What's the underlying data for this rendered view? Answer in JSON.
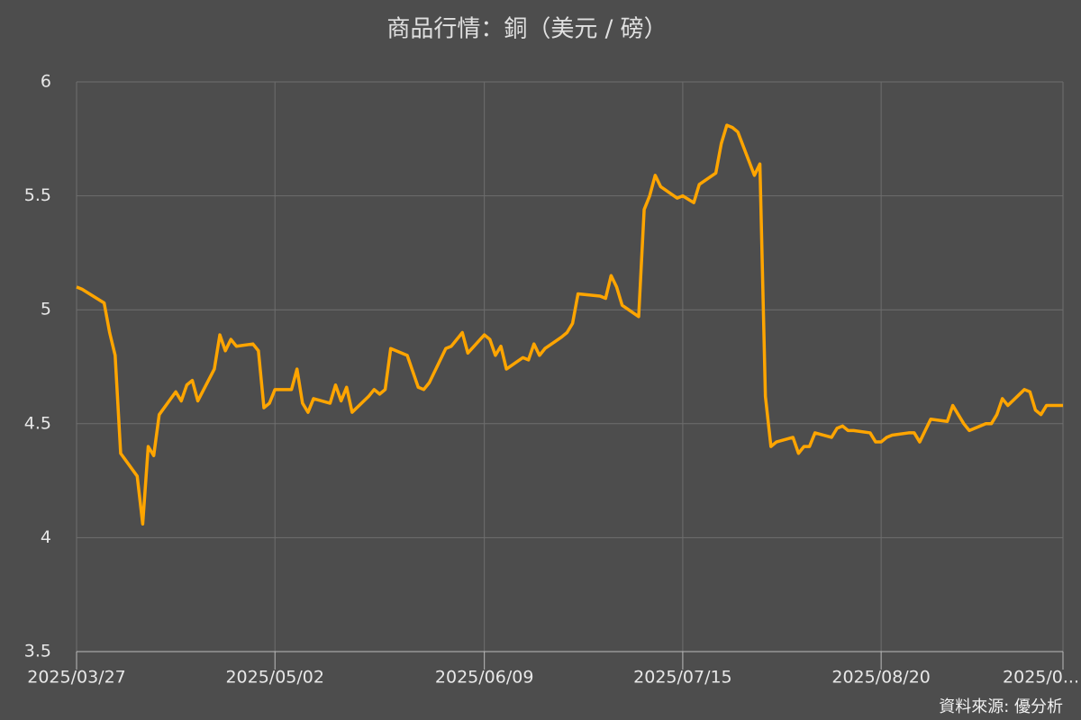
{
  "chart_data": {
    "type": "line",
    "title": "商品行情：銅（美元 / 磅）",
    "source": "資料來源: 優分析",
    "grid": true,
    "xlim": [
      "2025-03-27",
      "2025-09-22"
    ],
    "ylim": [
      3.5,
      6
    ],
    "yticks": [
      3.5,
      4,
      4.5,
      5,
      5.5,
      6
    ],
    "xticks": [
      {
        "value": "2025-03-27",
        "label": "2025/03/27"
      },
      {
        "value": "2025-05-02",
        "label": "2025/05/02"
      },
      {
        "value": "2025-06-09",
        "label": "2025/06/09"
      },
      {
        "value": "2025-07-15",
        "label": "2025/07/15"
      },
      {
        "value": "2025-08-20",
        "label": "2025/08/20"
      },
      {
        "value": "2025-09-22",
        "label": "2025/0..."
      }
    ],
    "x": [
      "2025-03-27",
      "2025-03-28",
      "2025-04-01",
      "2025-04-02",
      "2025-04-03",
      "2025-04-04",
      "2025-04-07",
      "2025-04-08",
      "2025-04-09",
      "2025-04-10",
      "2025-04-11",
      "2025-04-14",
      "2025-04-15",
      "2025-04-16",
      "2025-04-17",
      "2025-04-18",
      "2025-04-21",
      "2025-04-22",
      "2025-04-23",
      "2025-04-24",
      "2025-04-25",
      "2025-04-28",
      "2025-04-29",
      "2025-04-30",
      "2025-05-01",
      "2025-05-02",
      "2025-05-05",
      "2025-05-06",
      "2025-05-07",
      "2025-05-08",
      "2025-05-09",
      "2025-05-12",
      "2025-05-13",
      "2025-05-14",
      "2025-05-15",
      "2025-05-16",
      "2025-05-19",
      "2025-05-20",
      "2025-05-21",
      "2025-05-22",
      "2025-05-23",
      "2025-05-26",
      "2025-05-27",
      "2025-05-28",
      "2025-05-29",
      "2025-05-30",
      "2025-06-02",
      "2025-06-03",
      "2025-06-04",
      "2025-06-05",
      "2025-06-06",
      "2025-06-09",
      "2025-06-10",
      "2025-06-11",
      "2025-06-12",
      "2025-06-13",
      "2025-06-16",
      "2025-06-17",
      "2025-06-18",
      "2025-06-19",
      "2025-06-20",
      "2025-06-23",
      "2025-06-24",
      "2025-06-25",
      "2025-06-26",
      "2025-06-30",
      "2025-07-01",
      "2025-07-02",
      "2025-07-03",
      "2025-07-04",
      "2025-07-07",
      "2025-07-08",
      "2025-07-09",
      "2025-07-10",
      "2025-07-11",
      "2025-07-14",
      "2025-07-15",
      "2025-07-17",
      "2025-07-18",
      "2025-07-21",
      "2025-07-22",
      "2025-07-23",
      "2025-07-24",
      "2025-07-25",
      "2025-07-28",
      "2025-07-29",
      "2025-07-30",
      "2025-07-31",
      "2025-08-01",
      "2025-08-04",
      "2025-08-05",
      "2025-08-06",
      "2025-08-07",
      "2025-08-08",
      "2025-08-11",
      "2025-08-12",
      "2025-08-13",
      "2025-08-14",
      "2025-08-15",
      "2025-08-18",
      "2025-08-19",
      "2025-08-20",
      "2025-08-21",
      "2025-08-22",
      "2025-08-25",
      "2025-08-26",
      "2025-08-27",
      "2025-08-28",
      "2025-08-29",
      "2025-09-01",
      "2025-09-02",
      "2025-09-03",
      "2025-09-04",
      "2025-09-05",
      "2025-09-08",
      "2025-09-09",
      "2025-09-10",
      "2025-09-11",
      "2025-09-12",
      "2025-09-15",
      "2025-09-16",
      "2025-09-17",
      "2025-09-18",
      "2025-09-19",
      "2025-09-22"
    ],
    "series": [
      {
        "color": "#ffa500",
        "values": [
          5.1,
          5.09,
          5.03,
          4.9,
          4.8,
          4.37,
          4.27,
          4.06,
          4.4,
          4.36,
          4.54,
          4.64,
          4.6,
          4.67,
          4.69,
          4.6,
          4.74,
          4.89,
          4.82,
          4.87,
          4.84,
          4.85,
          4.82,
          4.57,
          4.59,
          4.65,
          4.65,
          4.74,
          4.59,
          4.55,
          4.61,
          4.59,
          4.67,
          4.6,
          4.66,
          4.55,
          4.62,
          4.65,
          4.63,
          4.65,
          4.83,
          4.8,
          4.73,
          4.66,
          4.65,
          4.68,
          4.83,
          4.84,
          4.87,
          4.9,
          4.81,
          4.89,
          4.87,
          4.8,
          4.84,
          4.74,
          4.79,
          4.78,
          4.85,
          4.8,
          4.83,
          4.88,
          4.9,
          4.94,
          5.07,
          5.06,
          5.05,
          5.15,
          5.1,
          5.02,
          4.97,
          5.44,
          5.5,
          5.59,
          5.54,
          5.49,
          5.5,
          5.47,
          5.55,
          5.6,
          5.73,
          5.81,
          5.8,
          5.78,
          5.59,
          5.64,
          4.62,
          4.4,
          4.42,
          4.44,
          4.37,
          4.4,
          4.4,
          4.46,
          4.44,
          4.48,
          4.49,
          4.47,
          4.47,
          4.46,
          4.42,
          4.42,
          4.44,
          4.45,
          4.46,
          4.46,
          4.42,
          4.47,
          4.52,
          4.51,
          4.58,
          4.54,
          4.5,
          4.47,
          4.5,
          4.5,
          4.54,
          4.61,
          4.58,
          4.65,
          4.64,
          4.56,
          4.54,
          4.58,
          4.58
        ]
      }
    ]
  }
}
